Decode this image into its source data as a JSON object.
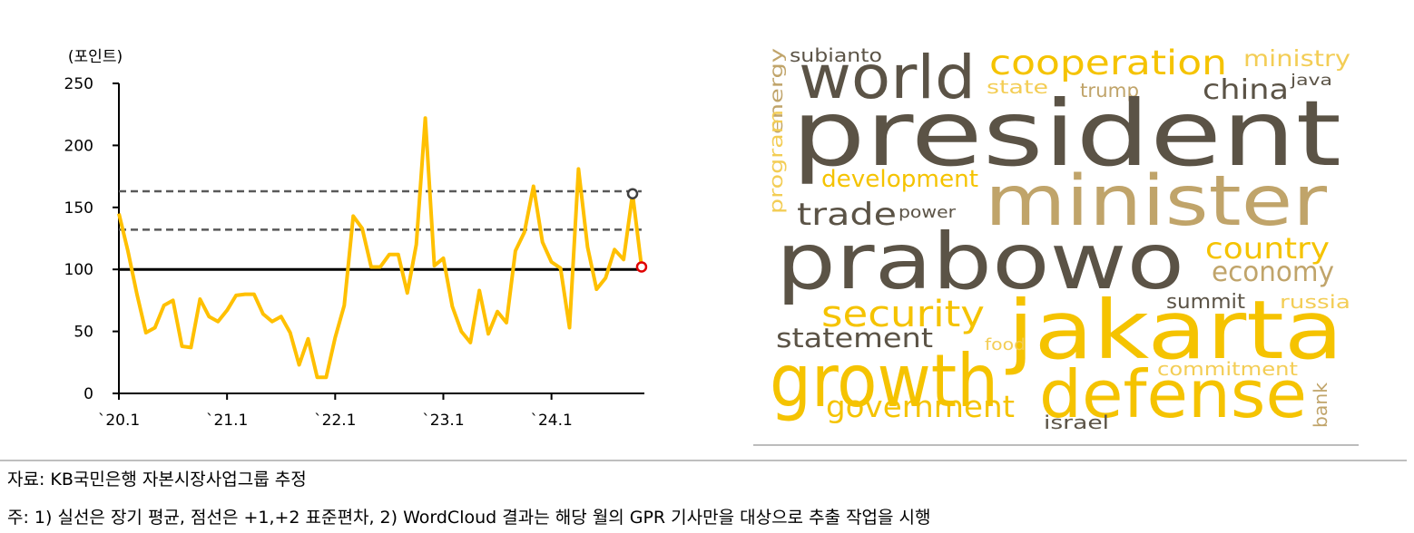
{
  "chart_data": {
    "type": "line",
    "y_label": "(포인트)",
    "categories": [
      "`20.1",
      null,
      null,
      null,
      null,
      null,
      null,
      null,
      null,
      null,
      null,
      null,
      "`21.1",
      null,
      null,
      null,
      null,
      null,
      null,
      null,
      null,
      null,
      null,
      null,
      "`22.1",
      null,
      null,
      null,
      null,
      null,
      null,
      null,
      null,
      null,
      null,
      null,
      "`23.1",
      null,
      null,
      null,
      null,
      null,
      null,
      null,
      null,
      null,
      null,
      null,
      "`24.1",
      null,
      null,
      null,
      null,
      null,
      null,
      null,
      null,
      null,
      null
    ],
    "values": [
      145,
      115,
      80,
      49,
      53,
      71,
      75,
      38,
      37,
      76,
      62,
      58,
      67,
      79,
      80,
      80,
      64,
      58,
      62,
      49,
      23,
      44,
      13,
      13,
      45,
      71,
      143,
      133,
      102,
      102,
      112,
      112,
      81,
      120,
      222,
      103,
      109,
      70,
      50,
      41,
      83,
      48,
      66,
      57,
      115,
      130,
      167,
      122,
      106,
      101,
      53,
      181,
      118,
      84,
      93,
      116,
      108,
      161,
      102
    ],
    "color": "#ffc000",
    "ylim": [
      0,
      250
    ],
    "yticks": [
      0,
      50,
      100,
      150,
      200,
      250
    ],
    "reference_lines": [
      {
        "value": 100,
        "style": "solid",
        "color": "#000000"
      },
      {
        "value": 132,
        "style": "dashed",
        "color": "#595959"
      },
      {
        "value": 163,
        "style": "dashed",
        "color": "#595959"
      }
    ],
    "highlight_points": [
      {
        "index": 57,
        "color": "#404040"
      },
      {
        "index": 58,
        "color": "#e00000"
      }
    ]
  },
  "wordcloud": {
    "words": [
      {
        "text": "subianto",
        "color": "#5b5346"
      },
      {
        "text": "energy",
        "color": "#c0a46a"
      },
      {
        "text": "world",
        "color": "#5b5346"
      },
      {
        "text": "cooperation",
        "color": "#f5c300"
      },
      {
        "text": "ministry",
        "color": "#f3cd55"
      },
      {
        "text": "state",
        "color": "#f3cd55"
      },
      {
        "text": "trump",
        "color": "#c0a46a"
      },
      {
        "text": "china",
        "color": "#5b5346"
      },
      {
        "text": "java",
        "color": "#5b5346"
      },
      {
        "text": "president",
        "color": "#5b5346"
      },
      {
        "text": "program",
        "color": "#f3cd55"
      },
      {
        "text": "development",
        "color": "#f5c300"
      },
      {
        "text": "minister",
        "color": "#c0a46a"
      },
      {
        "text": "trade",
        "color": "#5b5346"
      },
      {
        "text": "power",
        "color": "#5b5346"
      },
      {
        "text": "prabowo",
        "color": "#5b5346"
      },
      {
        "text": "country",
        "color": "#f5c300"
      },
      {
        "text": "economy",
        "color": "#c0a46a"
      },
      {
        "text": "summit",
        "color": "#5b5346"
      },
      {
        "text": "russia",
        "color": "#f3cd55"
      },
      {
        "text": "security",
        "color": "#f5c300"
      },
      {
        "text": "jakarta",
        "color": "#f5c300"
      },
      {
        "text": "statement",
        "color": "#5b5346"
      },
      {
        "text": "food",
        "color": "#f3cd55"
      },
      {
        "text": "growth",
        "color": "#f5c300"
      },
      {
        "text": "defense",
        "color": "#f5c300"
      },
      {
        "text": "commitment",
        "color": "#f3cd55"
      },
      {
        "text": "bank",
        "color": "#c0a46a"
      },
      {
        "text": "government",
        "color": "#f5c300"
      },
      {
        "text": "israel",
        "color": "#5b5346"
      }
    ]
  },
  "footer": {
    "source": "자료: KB국민은행 자본시장사업그룹 추정",
    "note": "주: 1) 실선은 장기 평균, 점선은 +1,+2 표준편차, 2) WordCloud 결과는 해당 월의 GPR 기사만을 대상으로 추출 작업을 시행"
  }
}
